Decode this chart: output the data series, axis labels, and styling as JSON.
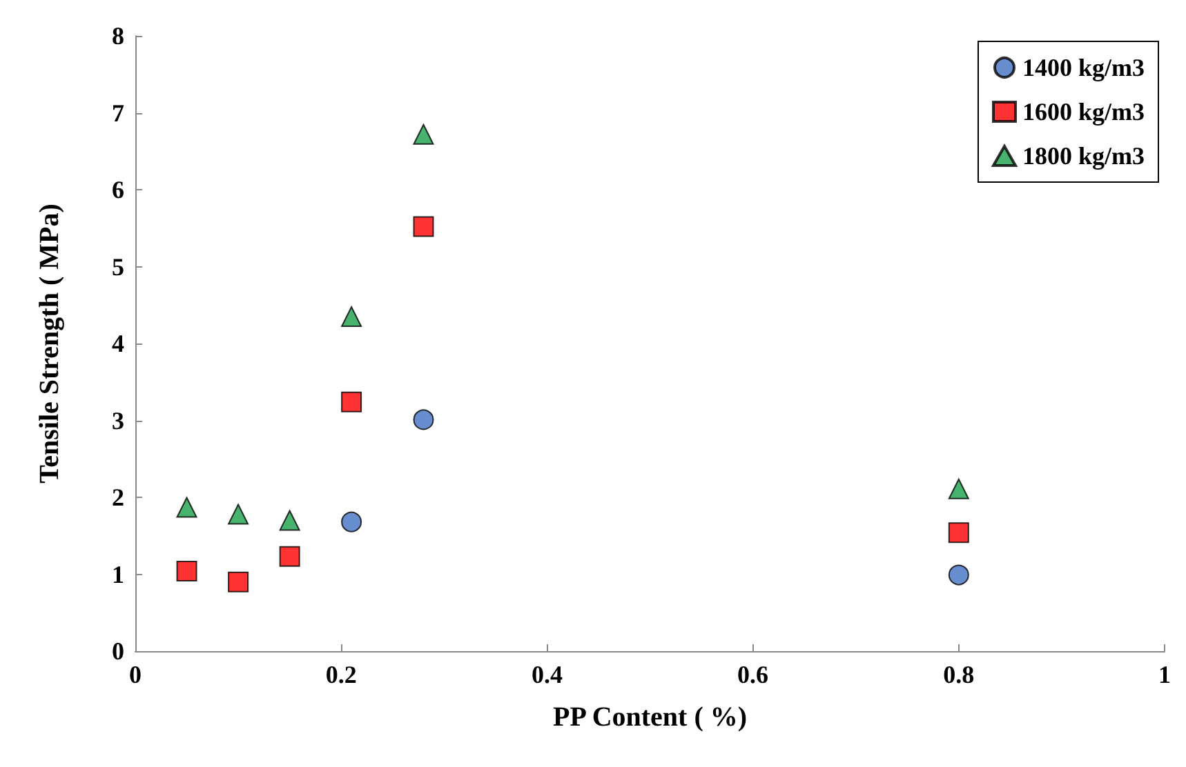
{
  "chart_data": {
    "type": "scatter",
    "xlabel": "PP Content ( %)",
    "ylabel": "Tensile Strength ( MPa)",
    "xlim": [
      0,
      1
    ],
    "xticks": [
      0,
      0.2,
      0.4,
      0.6,
      0.8,
      1
    ],
    "ylim": [
      0,
      8
    ],
    "yticks": [
      0,
      1,
      2,
      3,
      4,
      5,
      6,
      7,
      8
    ],
    "grid": false,
    "legend": "top right",
    "series": [
      {
        "name": "1400 kg/m3",
        "color": "#4472c4",
        "marker": "circle",
        "x": [
          0.21,
          0.28,
          0.8
        ],
        "values": [
          1.68,
          3.01,
          0.99
        ]
      },
      {
        "name": "1600 kg/m3",
        "color": "#ff0000",
        "marker": "square",
        "x": [
          0.05,
          0.1,
          0.15,
          0.21,
          0.28,
          0.8
        ],
        "values": [
          1.04,
          0.9,
          1.23,
          3.24,
          5.52,
          1.54
        ]
      },
      {
        "name": "1800 kg/m3",
        "color": "#1aa04a",
        "marker": "triangle",
        "x": [
          0.05,
          0.1,
          0.15,
          0.21,
          0.28,
          0.8
        ],
        "values": [
          1.87,
          1.78,
          1.7,
          4.35,
          6.72,
          2.11
        ]
      }
    ]
  }
}
